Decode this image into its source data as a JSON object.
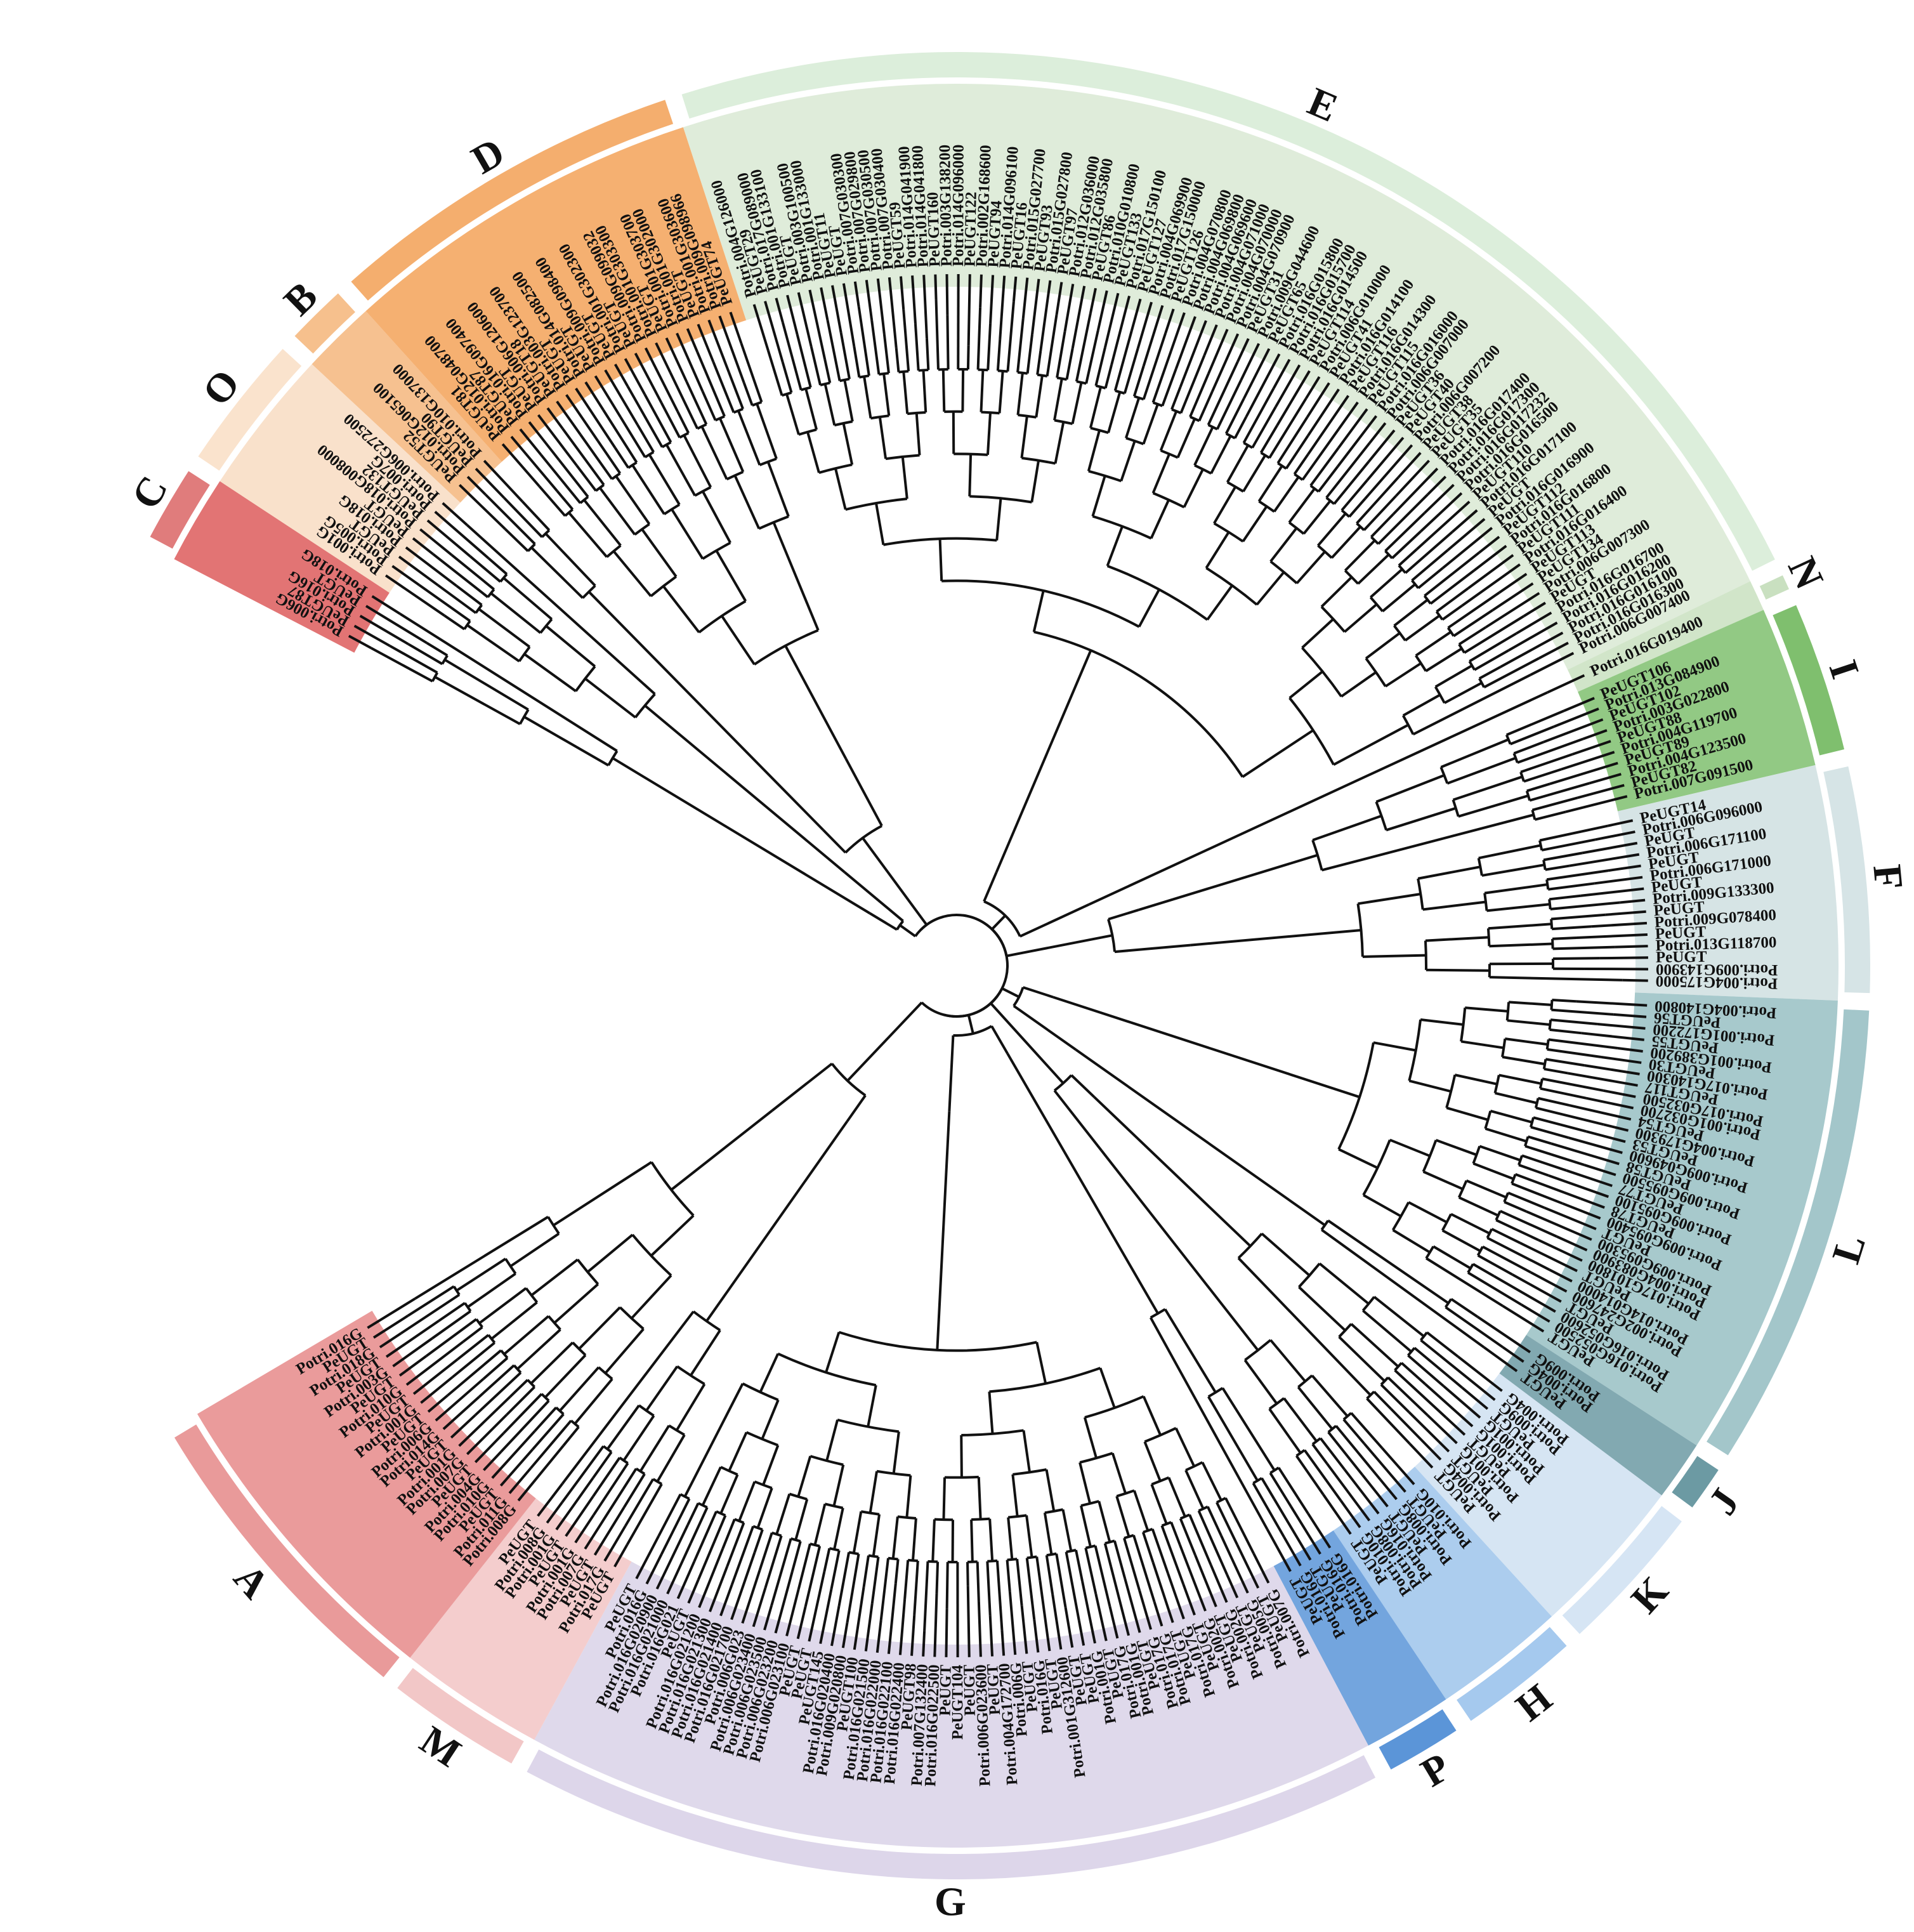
{
  "tree": {
    "clades": [
      {
        "id": "C",
        "color": "#dd5c5c",
        "label_color": "#e07c7c",
        "leaves": [
          "Potri.006G",
          "PeUGT87",
          "Potri.016G",
          "PeUGT",
          "Potri.018G"
        ]
      },
      {
        "id": "O",
        "color": "#f8dcc2",
        "label_color": "#fae3cd",
        "leaves": [
          "Potri.001G",
          "Potri.005G",
          "PeUGT",
          "Potri.018G",
          "PeUGT",
          "Potri.018G008000",
          "PeUGT132",
          "Potri.007G",
          "Potri.006G272500"
        ]
      },
      {
        "id": "B",
        "color": "#f5b67c",
        "label_color": "#f6c08d",
        "leaves": [
          "PeUGT52",
          "Potri.012G065100",
          "PeUGT90",
          "Potri.010G137000"
        ]
      },
      {
        "id": "D",
        "color": "#f3a258",
        "label_color": "#f4ae6e",
        "leaves": [
          "PeUGT81",
          "Potri.012G048700",
          "PeUGT87",
          "Potri.016G097400",
          "PeUGT",
          "Potri.006G120600",
          "PeUGT18",
          "Potri.003G123700",
          "PeUGT",
          "Potri.014G082500",
          "PeUGT",
          "Potri.009G098400",
          "PeUGT",
          "Potri.001G302300",
          "PeUGT",
          "Potri.009G099032",
          "Potri.001G303300",
          "PeUGT",
          "Potri.001G303700",
          "Potri.001G302000",
          "PeUGT",
          "Potri.001G303600",
          "Potri.009G098966",
          "PeUGT74"
        ]
      },
      {
        "id": "E",
        "color": "#d9e9d3",
        "label_color": "#dceedb",
        "leaves": [
          "Potri.004G126000",
          "PeUGT29",
          "Potri.017G089000",
          "Potri.001G133100",
          "PeUGT",
          "Potri.003G100500",
          "Potri.001G133000",
          "PeUGT11",
          "PeUGT",
          "Potri.007G030300",
          "Potri.007G029800",
          "Potri.007G030500",
          "Potri.007G030400",
          "PeUGT59",
          "Potri.014G041900",
          "Potri.014G041800",
          "PeUGT160",
          "Potri.003G138200",
          "Potri.014G096000",
          "PeUGT122",
          "Potri.002G168600",
          "PeUGT94",
          "Potri.014G096100",
          "PeUGT16",
          "Potri.015G027700",
          "PeUGT93",
          "Potri.015G027800",
          "PeUGT97",
          "Potri.012G036000",
          "Potri.012G035800",
          "PeUGT86",
          "Potri.010G010800",
          "PeUGT133",
          "Potri.017G150100",
          "PeUGT127",
          "Potri.004G069900",
          "Potri.017G150000",
          "PeUGT126",
          "Potri.004G070800",
          "Potri.004G069800",
          "Potri.004G069600",
          "Potri.004G071000",
          "Potri.004G070000",
          "Potri.004G070900",
          "PeUGT31",
          "Potri.009G044600",
          "PeUGT65",
          "Potri.016G015800",
          "Potri.016G015700",
          "Potri.016G014500",
          "PeUGT114",
          "Potri.006G010000",
          "PeUGT41",
          "Potri.016G014100",
          "PeUGT116",
          "Potri.016G014300",
          "PeUGT115",
          "Potri.016G016000",
          "Potri.006G007000",
          "PeUGT36",
          "PeUGT40",
          "Potri.006G007200",
          "PeUGT38",
          "PeUGT35",
          "Potri.016G017400",
          "Potri.016G017300",
          "Potri.016G017232",
          "Potri.016G016500",
          "PeUGT110",
          "Potri.016G017100",
          "PeUGT",
          "Potri.016G016900",
          "PeUGT112",
          "Potri.016G016800",
          "PeUGT111",
          "Potri.016G016400",
          "PeUGT113",
          "PeUGT134",
          "Potri.006G007300",
          "PeUGT",
          "Potri.016G016700",
          "Potri.016G016200",
          "Potri.016G016100",
          "Potri.016G016300",
          "Potri.006G007400"
        ]
      },
      {
        "id": "N",
        "color": "#c9e0c0",
        "label_color": "#c9e0c0",
        "leaves": [
          "Potri.016G019400"
        ]
      },
      {
        "id": "I",
        "color": "#7fbf6e",
        "label_color": "#7fbf6e",
        "leaves": [
          "PeUGT106",
          "Potri.013G084900",
          "PeUGT102",
          "Potri.003G022800",
          "PeUGT88",
          "Potri.004G119700",
          "PeUGT89",
          "Potri.004G123500",
          "PeUGT82",
          "Potri.007G091500"
        ]
      },
      {
        "id": "F",
        "color": "#cfdfe0",
        "label_color": "#d6e4e6",
        "leaves": [
          "PeUGT14",
          "Potri.006G096000",
          "PeUGT",
          "Potri.006G171100",
          "PeUGT",
          "Potri.006G171000",
          "PeUGT",
          "Potri.009G133300",
          "PeUGT",
          "Potri.009G078400",
          "PeUGT",
          "Potri.013G118700",
          "PeUGT",
          "Potri.009G143900",
          "Potri.004G175000"
        ]
      },
      {
        "id": "L",
        "color": "#98bfc3",
        "label_color": "#a3c6ca",
        "leaves": [
          "Potri.004G140800",
          "PeUGT56",
          "Potri.001G172200",
          "PeUGT55",
          "Potri.001G389200",
          "PeUGT30",
          "Potri.017G140300",
          "PeUGT117",
          "Potri.017G032500",
          "Potri.001G032700",
          "PeUGT54",
          "Potri.004G179300",
          "PeUGT53",
          "Potri.009G049600",
          "PeUGT58",
          "Potri.009G095500",
          "PeUGT77",
          "Potri.009G095100",
          "PeUGT78",
          "Potri.009G095400",
          "PeUGT",
          "Potri.009G095300",
          "Potri.004G083900",
          "Potri.017G101800",
          "PeUGT",
          "Potri.014G014000",
          "Potri.002G247600",
          "PeUGT",
          "Potri.016G052600",
          "Potri.016G052500",
          "PeUGT"
        ]
      },
      {
        "id": "J",
        "color": "#6c9aa3",
        "label_color": "#6c9aa3",
        "leaves": [
          "Potri.009G",
          "Potri.004G",
          "PeUGT"
        ]
      },
      {
        "id": "K",
        "color": "#cfe0f1",
        "label_color": "#d6e5f4",
        "leaves": [
          "Potri.004G",
          "Potri.009G",
          "PeUGT",
          "Potri.001G",
          "Potri.001G",
          "PeUGT",
          "Potri.001G",
          "PeUGT",
          "Potri.004G",
          "PeUGT"
        ]
      },
      {
        "id": "H",
        "color": "#9ec4eb",
        "label_color": "#a5c9ee",
        "leaves": [
          "Potri.010G",
          "PeUGT",
          "Potri.008G",
          "PeUGT",
          "Potri.016G",
          "Potri.008G",
          "Potri.010G",
          "PeUGT"
        ]
      },
      {
        "id": "P",
        "color": "#5b95d8",
        "label_color": "#5b95d8",
        "leaves": [
          "Potri.016G",
          "Potri.016G",
          "PeUGT",
          "Potri.016G",
          "PeUGT"
        ]
      },
      {
        "id": "G",
        "color": "#d9d2e8",
        "label_color": "#ddd6ea",
        "leaves": [
          "Potri.007G",
          "PeUGT",
          "Potri.005G",
          "PeUGT",
          "Potri.002G",
          "PeUGT",
          "Potri.002G",
          "PeUGT",
          "Potri.017G",
          "PeUGT",
          "Potri.017G",
          "Potri.017G",
          "PeUGT",
          "Potri.001G",
          "Potri.017G",
          "PeUGT",
          "Potri.001G",
          "PeUGT",
          "PeUGT",
          "Potri.001G312600",
          "PeUGT",
          "Potri.016G",
          "PeUGT",
          "Potri.006G",
          "Potri.004G172700",
          "PeUGT",
          "Potri.006G023600",
          "PeUGT",
          "PeUGT104",
          "PeUGT",
          "Potri.016G022500",
          "Potri.007G132400",
          "PeUGT98",
          "Potri.016G022400",
          "Potri.016G022100",
          "Potri.016G022000",
          "Potri.016G021500",
          "PeUGT100",
          "Potri.009G020800",
          "Potri.016G020400",
          "PeUGT145",
          "PeUGT",
          "PeUGT",
          "Potri.006G023100",
          "Potri.006G023200",
          "Potri.006G023500",
          "Potri.006G023400",
          "Potri.006G023",
          "Potri.016G021700",
          "Potri.016G021400",
          "Potri.016G021300",
          "Potri.016G021200",
          "PeUGT",
          "Potri.016G021",
          "Potri.016G021000",
          "Potri.016G020900",
          "Potri.016G",
          "PeUGT"
        ]
      },
      {
        "id": "M",
        "color": "#f2c4c4",
        "label_color": "#f2c7c7",
        "leaves": [
          "PeUGT",
          "Potri.017G",
          "PeUGT",
          "Potri.007G",
          "Potri.001G",
          "PeUGT",
          "Potri.001G",
          "Potri.008G",
          "PeUGT"
        ]
      },
      {
        "id": "A",
        "color": "#e68a8a",
        "label_color": "#e99a9a",
        "leaves": [
          "Potri.008G",
          "Potri.011G",
          "PeUGT",
          "Potri.010G",
          "Potri.004G",
          "PeUGT",
          "Potri.007G",
          "Potri.001G",
          "PeUGT",
          "Potri.014G",
          "Potri.006G",
          "PeUGT",
          "Potri.001G",
          "PeUGT",
          "Potri.010G",
          "PeUGT",
          "Potri.003G",
          "PeUGT",
          "Potri.018G",
          "PeUGT",
          "Potri.016G"
        ]
      }
    ]
  }
}
